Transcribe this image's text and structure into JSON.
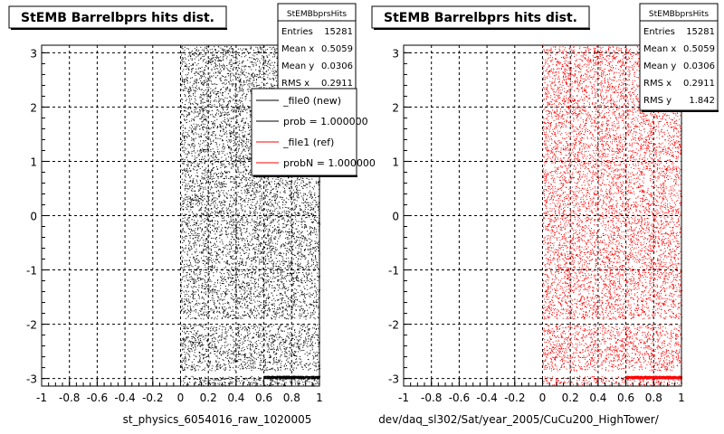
{
  "chart_data": [
    {
      "type": "scatter",
      "title": "StEMB Barrelbprs hits dist.",
      "xlabel": "st_physics_6054016_raw_1020005",
      "ylabel": "",
      "xlim": [
        -1,
        1
      ],
      "ylim": [
        -3.14,
        3.14
      ],
      "x_ticks": [
        "-1",
        "-0.8",
        "-0.6",
        "-0.4",
        "-0.2",
        "0",
        "0.2",
        "0.4",
        "0.6",
        "0.8",
        "1"
      ],
      "y_ticks": [
        "-3",
        "-2",
        "-1",
        "0",
        "1",
        "2",
        "3"
      ],
      "grid": true,
      "marker_color": "#000000",
      "series": [
        {
          "distribution": "uniform random hits",
          "x_range": [
            0,
            1
          ],
          "y_range": [
            -3.14,
            3.14
          ],
          "gaps_y": [
            [
              -2.0,
              -1.9
            ],
            [
              -2.95,
              -2.85
            ]
          ],
          "dense_bottom_stripe_y": [
            -3.0,
            -2.95
          ]
        }
      ],
      "stats": {
        "title": "StEMBbprsHits",
        "rows": [
          {
            "label": "Entries",
            "value": "15281"
          },
          {
            "label": "Mean x",
            "value": "0.5059"
          },
          {
            "label": "Mean y",
            "value": "0.0306"
          },
          {
            "label": "RMS x",
            "value": "0.2911"
          }
        ]
      },
      "legend": {
        "position": "top-right",
        "entries": [
          {
            "label": "_file0 (new)",
            "color": "#000000"
          },
          {
            "label": "prob = 1.000000",
            "color": "#000000"
          },
          {
            "label": "_file1 (ref)",
            "color": "#ff0000"
          },
          {
            "label": "probN = 1.000000",
            "color": "#ff0000"
          }
        ]
      }
    },
    {
      "type": "scatter",
      "title": "StEMB Barrelbprs hits dist.",
      "xlabel": "dev/daq_sl302/Sat/year_2005/CuCu200_HighTower/",
      "ylabel": "",
      "xlim": [
        -1,
        1
      ],
      "ylim": [
        -3.14,
        3.14
      ],
      "x_ticks": [
        "-1",
        "-0.8",
        "-0.6",
        "-0.4",
        "-0.2",
        "0",
        "0.2",
        "0.4",
        "0.6",
        "0.8",
        "1"
      ],
      "y_ticks": [
        "-3",
        "-2",
        "-1",
        "0",
        "1",
        "2",
        "3"
      ],
      "grid": true,
      "marker_color": "#ff0000",
      "series": [
        {
          "distribution": "uniform random hits",
          "x_range": [
            0,
            1
          ],
          "y_range": [
            -3.14,
            3.14
          ],
          "gaps_y": [
            [
              -2.0,
              -1.9
            ],
            [
              -2.95,
              -2.85
            ]
          ],
          "dense_bottom_stripe_y": [
            -3.0,
            -2.95
          ]
        }
      ],
      "stats": {
        "title": "StEMBbprsHits",
        "rows": [
          {
            "label": "Entries",
            "value": "15281"
          },
          {
            "label": "Mean x",
            "value": "0.5059"
          },
          {
            "label": "Mean y",
            "value": "0.0306"
          },
          {
            "label": "RMS x",
            "value": "0.2911"
          },
          {
            "label": "RMS y",
            "value": "1.842"
          }
        ]
      }
    }
  ]
}
